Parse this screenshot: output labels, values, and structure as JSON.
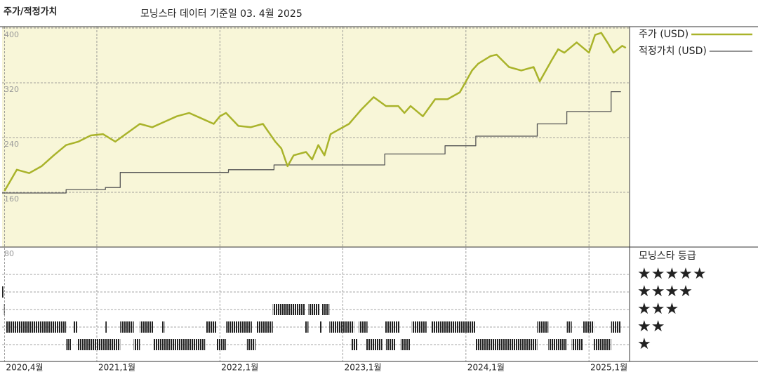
{
  "chart_data": {
    "type": "line",
    "title": "주가/적정가치",
    "subtitle": "모닝스타 데이터 기준일 03. 4월 2025",
    "xlim": [
      2020.23,
      2025.33
    ],
    "xticks": [
      {
        "value": 2020.25,
        "label": "2020,4월"
      },
      {
        "value": 2021,
        "label": "2021,1월"
      },
      {
        "value": 2022,
        "label": "2022,1월"
      },
      {
        "value": 2023,
        "label": "2023,1월"
      },
      {
        "value": 2024,
        "label": "2024,1월"
      },
      {
        "value": 2025,
        "label": "2025,1월"
      }
    ],
    "ylim": [
      80,
      402
    ],
    "yticks": [
      80,
      160,
      240,
      320,
      400
    ],
    "grid": true,
    "series": [
      {
        "name": "주가 (USD)",
        "color": "#a9b32a",
        "x": [
          2020.25,
          2020.35,
          2020.45,
          2020.55,
          2020.65,
          2020.75,
          2020.85,
          2020.95,
          2021.05,
          2021.15,
          2021.25,
          2021.35,
          2021.45,
          2021.55,
          2021.65,
          2021.75,
          2021.85,
          2021.95,
          2022.0,
          2022.05,
          2022.15,
          2022.25,
          2022.35,
          2022.45,
          2022.5,
          2022.55,
          2022.6,
          2022.7,
          2022.75,
          2022.8,
          2022.85,
          2022.9,
          2022.95,
          2023.05,
          2023.15,
          2023.25,
          2023.35,
          2023.45,
          2023.5,
          2023.55,
          2023.65,
          2023.75,
          2023.85,
          2023.95,
          2024.05,
          2024.1,
          2024.2,
          2024.25,
          2024.35,
          2024.45,
          2024.55,
          2024.6,
          2024.7,
          2024.75,
          2024.8,
          2024.9,
          2025.0,
          2025.05,
          2025.1,
          2025.15,
          2025.2,
          2025.27,
          2025.3
        ],
        "values": [
          162,
          193,
          188,
          198,
          214,
          229,
          234,
          243,
          245,
          234,
          247,
          260,
          255,
          263,
          271,
          276,
          268,
          260,
          271,
          276,
          257,
          255,
          260,
          234,
          224,
          198,
          214,
          219,
          208,
          229,
          214,
          245,
          250,
          260,
          281,
          299,
          286,
          286,
          276,
          286,
          271,
          296,
          296,
          306,
          338,
          348,
          359,
          361,
          343,
          338,
          343,
          322,
          354,
          369,
          364,
          379,
          364,
          390,
          393,
          379,
          364,
          374,
          371
        ]
      },
      {
        "name": "적정가치 (USD)",
        "color": "#555555",
        "x": [
          2020.23,
          2020.75,
          2020.75,
          2021.07,
          2021.07,
          2021.19,
          2021.19,
          2022.07,
          2022.07,
          2022.44,
          2022.44,
          2023.34,
          2023.34,
          2023.83,
          2023.83,
          2024.08,
          2024.08,
          2024.58,
          2024.58,
          2024.82,
          2024.82,
          2025.18,
          2025.18,
          2025.26
        ],
        "values": [
          159,
          159,
          164,
          164,
          167,
          167,
          189,
          189,
          193,
          193,
          200,
          200,
          216,
          216,
          228,
          228,
          242,
          242,
          260,
          260,
          278,
          278,
          307,
          307
        ]
      }
    ],
    "rating": {
      "title": "모닝스타 등급",
      "levels": [
        {
          "value": 5,
          "label": "★★★★★"
        },
        {
          "value": 4,
          "label": "★★★★"
        },
        {
          "value": 3,
          "label": "★★★"
        },
        {
          "value": 2,
          "label": "★★"
        },
        {
          "value": 1,
          "label": "★"
        }
      ],
      "periods": [
        {
          "stars": 4,
          "start": 2020.23,
          "end": 2020.24
        },
        {
          "stars": 3,
          "start": 2020.24,
          "end": 2020.25
        },
        {
          "stars": 2,
          "start": 2020.26,
          "end": 2020.75
        },
        {
          "stars": 1,
          "start": 2020.75,
          "end": 2020.79
        },
        {
          "stars": 2,
          "start": 2020.81,
          "end": 2020.84
        },
        {
          "stars": 1,
          "start": 2020.84,
          "end": 2021.19
        },
        {
          "stars": 2,
          "start": 2021.07,
          "end": 2021.08
        },
        {
          "stars": 2,
          "start": 2021.19,
          "end": 2021.3
        },
        {
          "stars": 1,
          "start": 2021.3,
          "end": 2021.35
        },
        {
          "stars": 2,
          "start": 2021.35,
          "end": 2021.46
        },
        {
          "stars": 1,
          "start": 2021.46,
          "end": 2021.88
        },
        {
          "stars": 2,
          "start": 2021.53,
          "end": 2021.55
        },
        {
          "stars": 2,
          "start": 2021.89,
          "end": 2021.97
        },
        {
          "stars": 1,
          "start": 2021.97,
          "end": 2022.05
        },
        {
          "stars": 2,
          "start": 2022.05,
          "end": 2022.26
        },
        {
          "stars": 1,
          "start": 2022.22,
          "end": 2022.29
        },
        {
          "stars": 2,
          "start": 2022.3,
          "end": 2022.43
        },
        {
          "stars": 3,
          "start": 2022.43,
          "end": 2022.69
        },
        {
          "stars": 2,
          "start": 2022.69,
          "end": 2022.72
        },
        {
          "stars": 3,
          "start": 2022.72,
          "end": 2022.81
        },
        {
          "stars": 2,
          "start": 2022.81,
          "end": 2022.83
        },
        {
          "stars": 3,
          "start": 2022.83,
          "end": 2022.89
        },
        {
          "stars": 2,
          "start": 2022.89,
          "end": 2023.09
        },
        {
          "stars": 1,
          "start": 2023.07,
          "end": 2023.12
        },
        {
          "stars": 2,
          "start": 2023.13,
          "end": 2023.2
        },
        {
          "stars": 1,
          "start": 2023.19,
          "end": 2023.32
        },
        {
          "stars": 2,
          "start": 2023.34,
          "end": 2023.46
        },
        {
          "stars": 1,
          "start": 2023.35,
          "end": 2023.43
        },
        {
          "stars": 1,
          "start": 2023.47,
          "end": 2023.55
        },
        {
          "stars": 2,
          "start": 2023.56,
          "end": 2023.68
        },
        {
          "stars": 2,
          "start": 2023.72,
          "end": 2024.08
        },
        {
          "stars": 1,
          "start": 2024.08,
          "end": 2024.58
        },
        {
          "stars": 2,
          "start": 2024.58,
          "end": 2024.67
        },
        {
          "stars": 1,
          "start": 2024.67,
          "end": 2024.82
        },
        {
          "stars": 2,
          "start": 2024.82,
          "end": 2024.86
        },
        {
          "stars": 1,
          "start": 2024.86,
          "end": 2024.95
        },
        {
          "stars": 2,
          "start": 2024.95,
          "end": 2025.04
        },
        {
          "stars": 1,
          "start": 2025.04,
          "end": 2025.18
        },
        {
          "stars": 2,
          "start": 2025.18,
          "end": 2025.26
        }
      ]
    }
  }
}
